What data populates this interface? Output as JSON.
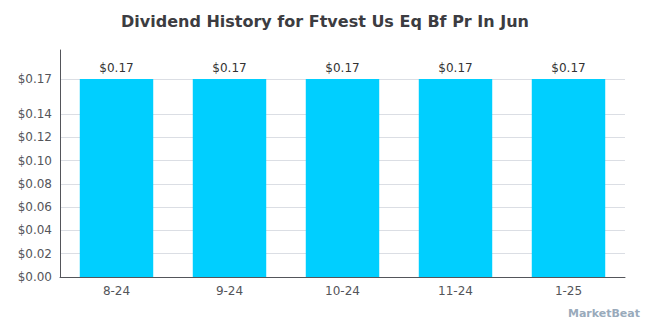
{
  "chart_data": {
    "type": "bar",
    "title": "Dividend History for Ftvest Us Eq Bf Pr In Jun",
    "categories": [
      "8-24",
      "9-24",
      "10-24",
      "11-24",
      "1-25"
    ],
    "values": [
      0.17,
      0.17,
      0.17,
      0.17,
      0.17
    ],
    "value_labels": [
      "$0.17",
      "$0.17",
      "$0.17",
      "$0.17",
      "$0.17"
    ],
    "data_labels": true,
    "color": "#00CFFF",
    "ylim": [
      0,
      0.195
    ],
    "yticks": [
      {
        "value": 0.0,
        "label": "$0.00"
      },
      {
        "value": 0.02,
        "label": "$0.02"
      },
      {
        "value": 0.04,
        "label": "$0.04"
      },
      {
        "value": 0.06,
        "label": "$0.06"
      },
      {
        "value": 0.08,
        "label": "$0.08"
      },
      {
        "value": 0.1,
        "label": "$0.10"
      },
      {
        "value": 0.12,
        "label": "$0.12"
      },
      {
        "value": 0.14,
        "label": "$0.14"
      },
      {
        "value": 0.17,
        "label": "$0.17"
      }
    ],
    "grid": true,
    "annotations": [
      "MarketBeat"
    ]
  }
}
